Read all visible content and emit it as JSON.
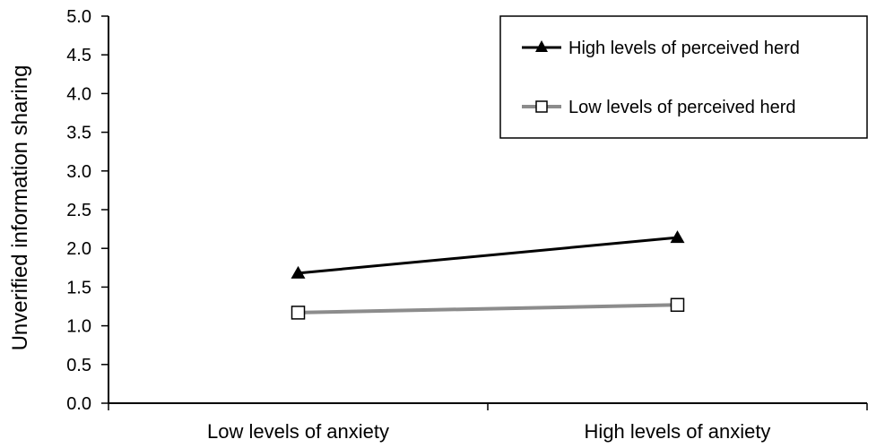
{
  "chart_data": {
    "type": "line",
    "title": "",
    "xlabel": "",
    "ylabel": "Unverified information sharing",
    "categories": [
      "Low levels of anxiety",
      "High levels of anxiety"
    ],
    "ylim": [
      0,
      5
    ],
    "yticks": [
      "0.0",
      "0.5",
      "1.0",
      "1.5",
      "2.0",
      "2.5",
      "3.0",
      "3.5",
      "4.0",
      "4.5",
      "5.0"
    ],
    "grid": false,
    "legend_position": "top-right",
    "series": [
      {
        "name": "High levels of perceived herd",
        "values": [
          1.68,
          2.14
        ],
        "color": "#000000",
        "marker": "filled-triangle"
      },
      {
        "name": "Low levels of perceived herd",
        "values": [
          1.17,
          1.27
        ],
        "color": "#8c8c8c",
        "marker": "open-square"
      }
    ]
  }
}
